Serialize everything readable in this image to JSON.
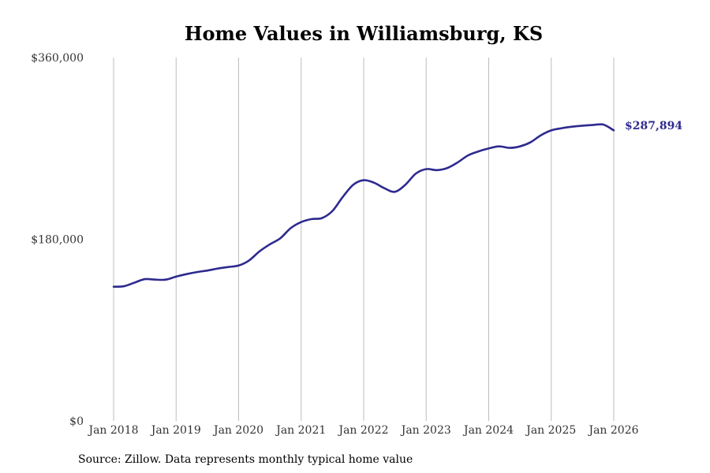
{
  "chart_data": {
    "type": "line",
    "title": "Home Values in Williamsburg, KS",
    "xlabel": "",
    "ylabel": "",
    "x_tick_labels": [
      "Jan 2018",
      "Jan 2019",
      "Jan 2020",
      "Jan 2021",
      "Jan 2022",
      "Jan 2023",
      "Jan 2024",
      "Jan 2025",
      "Jan 2026"
    ],
    "y_tick_labels": [
      "$0",
      "$180,000",
      "$360,000"
    ],
    "y_tick_values": [
      0,
      180000,
      360000
    ],
    "ylim": [
      0,
      360000
    ],
    "x_start": "Jan 2018",
    "x_end_month_index": 96,
    "grid": "vertical",
    "series": [
      {
        "name": "Typical home value",
        "color": "#2e2a8f",
        "x_month_index": [
          0,
          2,
          4,
          6,
          8,
          10,
          12,
          14,
          16,
          18,
          20,
          22,
          24,
          26,
          28,
          30,
          32,
          34,
          36,
          38,
          40,
          42,
          44,
          46,
          48,
          50,
          52,
          54,
          56,
          58,
          60,
          62,
          64,
          66,
          68,
          70,
          72,
          74,
          76,
          78,
          80,
          82,
          84,
          86,
          88,
          90,
          92,
          94,
          96
        ],
        "values": [
          133000,
          133500,
          137000,
          140500,
          140000,
          140000,
          143000,
          145500,
          147500,
          149000,
          151000,
          152500,
          154000,
          159000,
          168000,
          175000,
          181000,
          191000,
          197000,
          200000,
          201000,
          208000,
          222000,
          234000,
          238500,
          236000,
          230500,
          227000,
          234000,
          245000,
          249500,
          248500,
          250500,
          256000,
          263000,
          267000,
          270000,
          272000,
          270500,
          272000,
          276000,
          283000,
          287894,
          290000,
          291500,
          292500,
          293200,
          293600,
          287894
        ]
      }
    ],
    "end_label": "$287,894"
  },
  "source_note": "Source: Zillow. Data represents monthly typical home value"
}
